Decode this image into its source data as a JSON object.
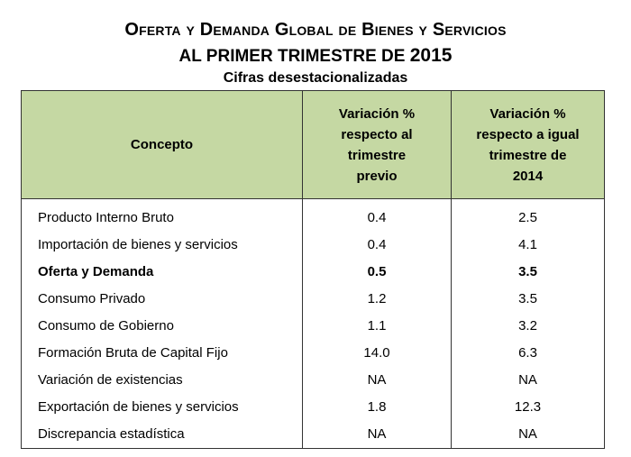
{
  "title": {
    "line1": "Oferta y Demanda Global de Bienes y Servicios",
    "line2_prefix": "AL PRIMER TRIMESTRE DE",
    "line2_year": "2015",
    "line3": "Cifras desestacionalizadas"
  },
  "table": {
    "headers": {
      "concept": "Concepto",
      "col2": "Variación % respecto al trimestre previo",
      "col3": "Variación % respecto a igual trimestre de 2014"
    },
    "rows": [
      {
        "concept": "Producto Interno Bruto",
        "prev": "0.4",
        "year": "2.5",
        "bold": false
      },
      {
        "concept": "Importación de bienes y servicios",
        "prev": "0.4",
        "year": "4.1",
        "bold": false
      },
      {
        "concept": "Oferta  y  Demanda",
        "prev": "0.5",
        "year": "3.5",
        "bold": true
      },
      {
        "concept": "Consumo Privado",
        "prev": "1.2",
        "year": "3.5",
        "bold": false
      },
      {
        "concept": "Consumo de Gobierno",
        "prev": "1.1",
        "year": "3.2",
        "bold": false
      },
      {
        "concept": "Formación Bruta de Capital Fijo",
        "prev": "14.0",
        "year": "6.3",
        "bold": false
      },
      {
        "concept": "Variación de existencias",
        "prev": "NA",
        "year": "NA",
        "bold": false
      },
      {
        "concept": "Exportación de bienes y servicios",
        "prev": "1.8",
        "year": "12.3",
        "bold": false
      },
      {
        "concept": "Discrepancia estadística",
        "prev": "NA",
        "year": "NA",
        "bold": false
      }
    ]
  },
  "colors": {
    "header_bg": "#c5d8a3",
    "border": "#333333"
  }
}
